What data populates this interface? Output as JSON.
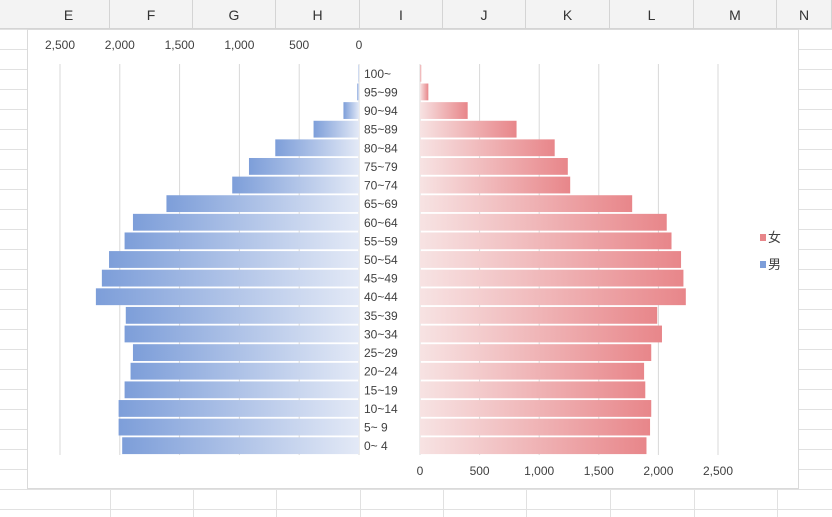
{
  "spreadsheet": {
    "columns": [
      "E",
      "F",
      "G",
      "H",
      "I",
      "J",
      "K",
      "L",
      "M",
      "N"
    ]
  },
  "chart_data": {
    "type": "bar",
    "orientation": "horizontal",
    "layout": "population-pyramid",
    "categories": [
      "100~",
      "95~99",
      "90~94",
      "85~89",
      "80~84",
      "75~79",
      "70~74",
      "65~69",
      "60~64",
      "55~59",
      "50~54",
      "45~49",
      "40~44",
      "35~39",
      "30~34",
      "25~29",
      "20~24",
      "15~19",
      "10~14",
      "5~ 9",
      "0~ 4"
    ],
    "series": [
      {
        "name": "女",
        "color": "#e8868a",
        "values": [
          10,
          70,
          400,
          810,
          1130,
          1240,
          1260,
          1780,
          2070,
          2110,
          2190,
          2210,
          2230,
          1990,
          2030,
          1940,
          1880,
          1890,
          1940,
          1930,
          1900
        ]
      },
      {
        "name": "男",
        "color": "#7d9ed9",
        "values": [
          5,
          15,
          130,
          380,
          700,
          920,
          1060,
          1610,
          1890,
          1960,
          2090,
          2150,
          2200,
          1950,
          1960,
          1890,
          1910,
          1960,
          2010,
          2010,
          1980
        ]
      }
    ],
    "left_axis_ticks": [
      "2,500",
      "2,000",
      "1,500",
      "1,000",
      "500",
      "0"
    ],
    "right_axis_ticks": [
      "0",
      "500",
      "1,000",
      "1,500",
      "2,000",
      "2,500"
    ],
    "axis_range": [
      0,
      2500
    ],
    "grid": true,
    "legend_position": "right"
  }
}
